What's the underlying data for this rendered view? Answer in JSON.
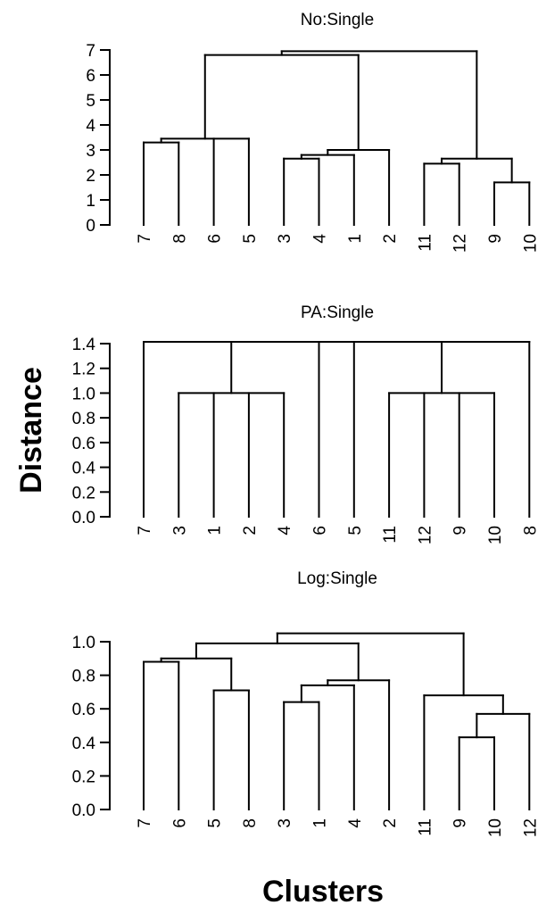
{
  "chart_data": {
    "type": "dendrogram",
    "ylabel": "Distance",
    "xlabel": "Clusters",
    "panels": [
      {
        "title": "No:Single",
        "ylim": [
          0,
          7
        ],
        "yticks": [
          "0",
          "1",
          "2",
          "3",
          "4",
          "5",
          "6",
          "7"
        ],
        "leaves": [
          "7",
          "8",
          "6",
          "5",
          "3",
          "4",
          "1",
          "2",
          "11",
          "12",
          "9",
          "10"
        ],
        "merges": [
          {
            "children": [
              "L:9",
              "L:10"
            ],
            "height": 1.7
          },
          {
            "children": [
              "L:11",
              "L:12"
            ],
            "height": 2.45
          },
          {
            "children": [
              "N:1",
              "N:0"
            ],
            "height": 2.65
          },
          {
            "children": [
              "L:3",
              "L:4"
            ],
            "height": 2.65
          },
          {
            "children": [
              "N:3",
              "L:1"
            ],
            "height": 2.8
          },
          {
            "children": [
              "N:4",
              "L:2"
            ],
            "height": 3.0
          },
          {
            "children": [
              "L:7",
              "L:8"
            ],
            "height": 3.3
          },
          {
            "children": [
              "N:6",
              "L:6",
              "L:5"
            ],
            "height": 3.45
          },
          {
            "children": [
              "N:7",
              "N:5"
            ],
            "height": 6.8
          },
          {
            "children": [
              "N:8",
              "N:2"
            ],
            "height": 6.95
          }
        ]
      },
      {
        "title": "PA:Single",
        "ylim": [
          0,
          1.4
        ],
        "yticks": [
          "0.0",
          "0.2",
          "0.4",
          "0.6",
          "0.8",
          "1.0",
          "1.2",
          "1.4"
        ],
        "leaves": [
          "7",
          "3",
          "1",
          "2",
          "4",
          "6",
          "5",
          "11",
          "12",
          "9",
          "10",
          "8"
        ],
        "merges": [
          {
            "children": [
              "L:3",
              "L:1",
              "L:2",
              "L:4"
            ],
            "height": 1.0
          },
          {
            "children": [
              "L:11",
              "L:12",
              "L:9",
              "L:10"
            ],
            "height": 1.0
          },
          {
            "children": [
              "L:7",
              "N:0",
              "L:6",
              "L:5",
              "N:1",
              "L:8"
            ],
            "height": 1.414
          }
        ]
      },
      {
        "title": "Log:Single",
        "ylim": [
          0,
          1.0
        ],
        "yticks": [
          "0.0",
          "0.2",
          "0.4",
          "0.6",
          "0.8",
          "1.0"
        ],
        "leaves": [
          "7",
          "6",
          "5",
          "8",
          "3",
          "1",
          "4",
          "2",
          "11",
          "9",
          "10",
          "12"
        ],
        "merges": [
          {
            "children": [
              "L:9",
              "L:10"
            ],
            "height": 0.43
          },
          {
            "children": [
              "N:0",
              "L:12"
            ],
            "height": 0.57
          },
          {
            "children": [
              "L:11",
              "N:1"
            ],
            "height": 0.68
          },
          {
            "children": [
              "L:3",
              "L:1"
            ],
            "height": 0.64
          },
          {
            "children": [
              "L:5",
              "L:8"
            ],
            "height": 0.71
          },
          {
            "children": [
              "N:3",
              "L:4"
            ],
            "height": 0.74
          },
          {
            "children": [
              "N:5",
              "L:2"
            ],
            "height": 0.77
          },
          {
            "children": [
              "L:7",
              "L:6"
            ],
            "height": 0.88
          },
          {
            "children": [
              "N:7",
              "N:4"
            ],
            "height": 0.9
          },
          {
            "children": [
              "N:8",
              "N:6"
            ],
            "height": 0.99
          },
          {
            "children": [
              "N:9",
              "N:2"
            ],
            "height": 1.05
          }
        ]
      }
    ]
  }
}
